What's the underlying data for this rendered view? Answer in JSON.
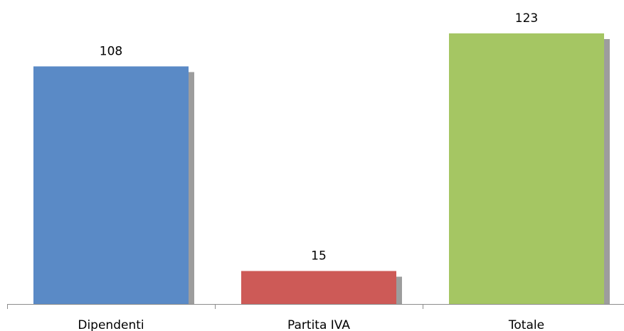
{
  "chart_data": {
    "type": "bar",
    "title": "",
    "xlabel": "",
    "ylabel": "",
    "categories": [
      "Dipendenti",
      "Partita IVA",
      "Totale"
    ],
    "values": [
      108,
      15,
      123
    ],
    "data_labels": [
      "108",
      "15",
      "123"
    ],
    "colors": [
      "#5a8ac6",
      "#cd5a57",
      "#a5c663"
    ],
    "shadow_color": "#8c8c8c",
    "axis_color": "#8c8c8c",
    "ylim": [
      0,
      123
    ],
    "grid": false,
    "legend": "none"
  }
}
